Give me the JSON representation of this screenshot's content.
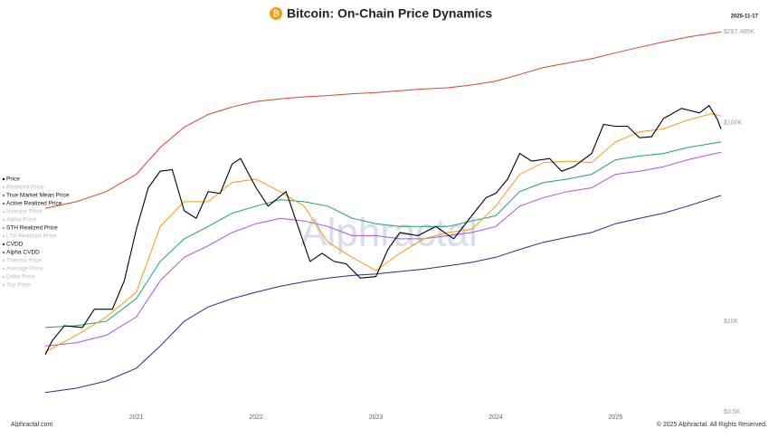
{
  "chart_data": {
    "type": "line",
    "title": "Bitcoin: On-Chain Price Dynamics",
    "date": "2025-11-17",
    "watermark": "Alphractal",
    "footer_left": "Alphractal.com",
    "footer_right": "© 2025 Alphractal. All Rights Reserved.",
    "log_y": true,
    "grid": false,
    "legend": "left",
    "xlim": [
      2020.24,
      2025.88
    ],
    "xticks": [
      2021,
      2022,
      2023,
      2024,
      2025
    ],
    "ylim": [
      3500,
      287485
    ],
    "yticks": [
      {
        "value": 3500,
        "label": "$3.5K"
      },
      {
        "value": 10000,
        "label": "$10K"
      },
      {
        "value": 100000,
        "label": "$100K"
      },
      {
        "value": 287485,
        "label": "$287.485K"
      }
    ],
    "series": [
      {
        "name": "Price",
        "visible": true,
        "color": "#000000",
        "x": [
          2020.24,
          2020.3,
          2020.4,
          2020.55,
          2020.65,
          2020.8,
          2020.9,
          2021.0,
          2021.1,
          2021.2,
          2021.3,
          2021.4,
          2021.5,
          2021.6,
          2021.7,
          2021.8,
          2021.87,
          2022.0,
          2022.1,
          2022.25,
          2022.35,
          2022.45,
          2022.55,
          2022.65,
          2022.75,
          2022.87,
          2023.0,
          2023.1,
          2023.2,
          2023.35,
          2023.5,
          2023.65,
          2023.8,
          2023.92,
          2024.0,
          2024.1,
          2024.2,
          2024.3,
          2024.45,
          2024.55,
          2024.65,
          2024.8,
          2024.9,
          2025.0,
          2025.1,
          2025.2,
          2025.3,
          2025.4,
          2025.55,
          2025.7,
          2025.78,
          2025.85,
          2025.88
        ],
        "values": [
          6800,
          8000,
          9500,
          9300,
          11500,
          11500,
          16000,
          29000,
          47000,
          57000,
          58000,
          36000,
          33000,
          45000,
          44000,
          62000,
          66000,
          47000,
          38000,
          45000,
          30000,
          20000,
          22000,
          20000,
          19500,
          16500,
          16800,
          23000,
          28000,
          27000,
          30000,
          26000,
          34000,
          42000,
          44000,
          52000,
          70000,
          64000,
          66000,
          57000,
          60000,
          70000,
          98000,
          96000,
          96000,
          84000,
          85000,
          105000,
          118000,
          112000,
          122000,
          104000,
          93000
        ]
      },
      {
        "name": "Realized Price",
        "visible": false
      },
      {
        "name": "True Market Mean Price",
        "visible": true,
        "color": "#b04ee0",
        "x": [
          2020.24,
          2020.5,
          2020.75,
          2021.0,
          2021.2,
          2021.4,
          2021.6,
          2021.8,
          2022.0,
          2022.2,
          2022.4,
          2022.6,
          2022.8,
          2023.0,
          2023.2,
          2023.4,
          2023.6,
          2023.8,
          2024.0,
          2024.2,
          2024.4,
          2024.6,
          2024.8,
          2025.0,
          2025.2,
          2025.4,
          2025.6,
          2025.88
        ],
        "values": [
          7500,
          7800,
          8500,
          10500,
          16000,
          21000,
          24000,
          28000,
          31000,
          33000,
          32000,
          30000,
          27000,
          27000,
          26000,
          26000,
          27000,
          28000,
          30000,
          38000,
          42000,
          45000,
          47000,
          55000,
          57000,
          60000,
          65000,
          71000
        ]
      },
      {
        "name": "Active Realized Price",
        "visible": true,
        "color": "#1a9e7e",
        "x": [
          2020.24,
          2020.5,
          2020.75,
          2021.0,
          2021.2,
          2021.4,
          2021.6,
          2021.8,
          2022.0,
          2022.2,
          2022.4,
          2022.6,
          2022.8,
          2023.0,
          2023.2,
          2023.4,
          2023.6,
          2023.8,
          2024.0,
          2024.2,
          2024.4,
          2024.6,
          2024.8,
          2025.0,
          2025.2,
          2025.4,
          2025.6,
          2025.88
        ],
        "values": [
          9300,
          9500,
          10000,
          13000,
          20000,
          26000,
          30000,
          35000,
          38000,
          41000,
          40000,
          38000,
          33000,
          31000,
          30000,
          30000,
          30000,
          32000,
          34000,
          45000,
          50000,
          52000,
          55000,
          65000,
          68000,
          70000,
          75000,
          80000
        ]
      },
      {
        "name": "Investor Price",
        "visible": false
      },
      {
        "name": "Alpha Price",
        "visible": false
      },
      {
        "name": "STH Realized Price",
        "visible": true,
        "color": "#f39c12",
        "x": [
          2020.24,
          2020.5,
          2020.75,
          2021.0,
          2021.2,
          2021.4,
          2021.6,
          2021.8,
          2022.0,
          2022.2,
          2022.4,
          2022.6,
          2022.8,
          2023.0,
          2023.2,
          2023.4,
          2023.6,
          2023.8,
          2024.0,
          2024.2,
          2024.4,
          2024.6,
          2024.8,
          2025.0,
          2025.2,
          2025.4,
          2025.6,
          2025.8,
          2025.88
        ],
        "values": [
          7000,
          8500,
          10500,
          14000,
          30000,
          40000,
          40000,
          50000,
          52000,
          45000,
          38000,
          25000,
          21000,
          18000,
          22000,
          26000,
          28000,
          29000,
          38000,
          55000,
          63000,
          64000,
          63000,
          80000,
          90000,
          93000,
          103000,
          111000,
          108000
        ]
      },
      {
        "name": "LTH Realized Price",
        "visible": false
      },
      {
        "name": "CVDD",
        "visible": true,
        "color": "#2c2c8c",
        "x": [
          2020.24,
          2020.5,
          2020.75,
          2021.0,
          2021.2,
          2021.4,
          2021.6,
          2021.8,
          2022.0,
          2022.2,
          2022.4,
          2022.6,
          2022.8,
          2023.0,
          2023.2,
          2023.4,
          2023.6,
          2023.8,
          2024.0,
          2024.2,
          2024.4,
          2024.6,
          2024.8,
          2025.0,
          2025.2,
          2025.4,
          2025.6,
          2025.88
        ],
        "values": [
          4370,
          4600,
          5000,
          5800,
          7500,
          10000,
          11800,
          13000,
          14000,
          15000,
          15800,
          16500,
          17000,
          17300,
          17800,
          18300,
          19000,
          19800,
          21000,
          23000,
          25000,
          26500,
          28000,
          31000,
          33000,
          35000,
          38000,
          43000
        ]
      },
      {
        "name": "Alpha CVDD",
        "visible": true,
        "color": "#d9432b",
        "x": [
          2020.24,
          2020.5,
          2020.75,
          2021.0,
          2021.2,
          2021.4,
          2021.6,
          2021.8,
          2022.0,
          2022.2,
          2022.4,
          2022.6,
          2022.8,
          2023.0,
          2023.2,
          2023.4,
          2023.6,
          2023.8,
          2024.0,
          2024.2,
          2024.4,
          2024.6,
          2024.8,
          2025.0,
          2025.2,
          2025.4,
          2025.6,
          2025.88
        ],
        "values": [
          37000,
          40000,
          45000,
          55000,
          75000,
          95000,
          110000,
          120000,
          128000,
          132000,
          135000,
          137000,
          140000,
          142000,
          145000,
          148000,
          150000,
          155000,
          162000,
          175000,
          190000,
          200000,
          210000,
          225000,
          240000,
          255000,
          270000,
          287000
        ]
      },
      {
        "name": "Thermo Price",
        "visible": false
      },
      {
        "name": "Average Price",
        "visible": false
      },
      {
        "name": "Delta Price",
        "visible": false
      },
      {
        "name": "Top Price",
        "visible": false
      }
    ]
  }
}
